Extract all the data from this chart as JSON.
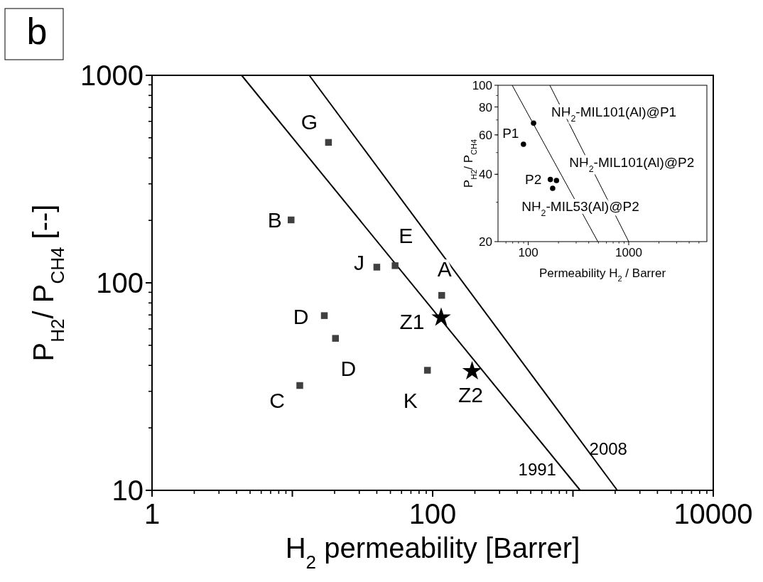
{
  "chart_data": [
    {
      "type": "scatter",
      "xlabel": "H$_{2}$ permeability [Barrer]",
      "ylabel": "P$_{H2}$/ P$_{CH4}$ [--]",
      "log": "xy",
      "xlim": [
        1,
        10000
      ],
      "ylim": [
        10,
        1000
      ],
      "xticks": [
        1,
        {
          "value": 10,
          "label": null
        },
        100,
        {
          "value": 1000,
          "label": null
        },
        10000
      ],
      "yticks": [
        10,
        100,
        1000
      ],
      "grid": false,
      "legend": false,
      "series": [
        {
          "type": "scatter",
          "marker": "square",
          "color": "#404040",
          "x": [
            18.1,
            9.8,
            40,
            54,
            116,
            16.9,
            20.3,
            91.8,
            11.3
          ],
          "values": [
            475,
            201,
            119,
            121,
            87,
            69.5,
            54,
            37.9,
            32
          ],
          "value_labels": [
            "G",
            "B",
            "J",
            "E",
            "A",
            "D",
            "D",
            "K",
            "C"
          ]
        },
        {
          "type": "scatter",
          "marker": "star",
          "color": "#000000",
          "x": [
            115,
            191
          ],
          "values": [
            68,
            37.5
          ],
          "value_labels": [
            "Z1",
            "Z2"
          ]
        },
        {
          "type": "line",
          "name": "1991",
          "color": "#000000",
          "line_style": "solid",
          "x": [
            4.35,
            1127
          ],
          "values": [
            1000,
            10
          ]
        },
        {
          "type": "line",
          "name": "2008",
          "color": "#000000",
          "line_style": "solid",
          "x": [
            13.2,
            2070
          ],
          "values": [
            1000,
            10
          ]
        }
      ],
      "annotations": [
        "b"
      ]
    },
    {
      "type": "scatter",
      "xlabel": "Permeability H$_{2}$ / Barrer",
      "ylabel": "P$_{H2}$/ P$_{CH4}$",
      "log": "xy",
      "xlim": [
        50,
        6000
      ],
      "ylim": [
        20,
        100
      ],
      "xticks": [
        100,
        1000
      ],
      "yticks": [
        20,
        40,
        60,
        80,
        100
      ],
      "grid": false,
      "legend": false,
      "series": [
        {
          "type": "scatter",
          "marker": "circle",
          "color": "#000000",
          "x": [
            113,
            89.6,
            166,
            191,
            175
          ],
          "values": [
            67.7,
            54.5,
            37.9,
            37.5,
            34.6
          ],
          "value_labels": [
            "NH$_{2}$-MIL101(Al)@P1",
            "P1",
            "P2",
            "NH$_{2}$-MIL101(Al)@P2",
            "NH$_{2}$-MIL53(Al)@P2"
          ]
        },
        {
          "type": "line",
          "color": "#000000",
          "line_style": "solid",
          "x": [
            69.2,
            493
          ],
          "values": [
            100,
            20
          ]
        },
        {
          "type": "line",
          "color": "#000000",
          "line_style": "solid",
          "x": [
            164,
            1000
          ],
          "values": [
            100,
            20
          ]
        }
      ]
    }
  ]
}
